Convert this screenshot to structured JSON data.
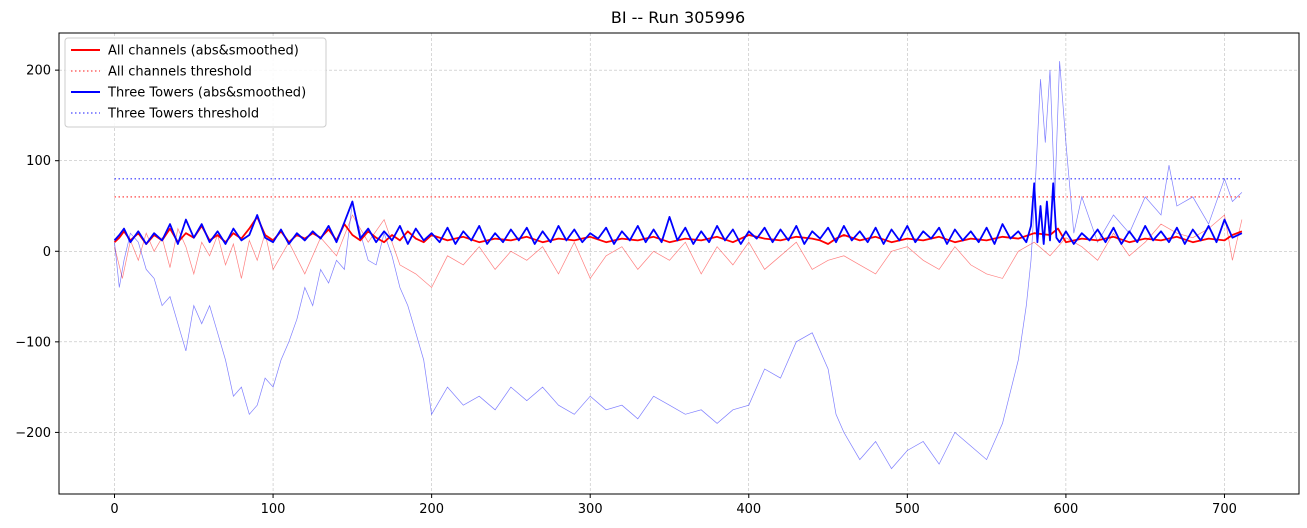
{
  "chart_data": {
    "type": "line",
    "title": "BI -- Run 305996",
    "xlabel": "",
    "ylabel": "",
    "xlim": [
      -35,
      747
    ],
    "ylim": [
      -268,
      241
    ],
    "x_ticks": [
      0,
      100,
      200,
      300,
      400,
      500,
      600,
      700
    ],
    "y_ticks": [
      -200,
      -100,
      0,
      100,
      200
    ],
    "x_tick_labels": [
      "0",
      "100",
      "200",
      "300",
      "400",
      "500",
      "600",
      "700"
    ],
    "y_tick_labels": [
      "−200",
      "−100",
      "0",
      "100",
      "200"
    ],
    "grid": true,
    "legend_position": "top-left",
    "legend": [
      {
        "label": "All channels (abs&smoothed)",
        "color": "#ff0000",
        "style": "solid"
      },
      {
        "label": "All channels threshold",
        "color": "#ff6666",
        "style": "dotted"
      },
      {
        "label": "Three Towers (abs&smoothed)",
        "color": "#0000ff",
        "style": "solid"
      },
      {
        "label": "Three Towers threshold",
        "color": "#6666ff",
        "style": "dotted"
      }
    ],
    "series": [
      {
        "name": "All channels threshold",
        "color": "#ff6666",
        "style": "dotted",
        "x": [
          0,
          711
        ],
        "values": [
          60,
          60
        ]
      },
      {
        "name": "Three Towers threshold",
        "color": "#6666ff",
        "style": "dotted",
        "x": [
          0,
          711
        ],
        "values": [
          80,
          80
        ]
      },
      {
        "name": "",
        "color": "#ff0000",
        "style": "raw",
        "alpha": 0.5,
        "x": [
          0,
          5,
          10,
          15,
          20,
          25,
          30,
          35,
          40,
          45,
          50,
          55,
          60,
          65,
          70,
          75,
          80,
          85,
          90,
          95,
          100,
          110,
          120,
          130,
          140,
          150,
          160,
          170,
          180,
          190,
          200,
          210,
          220,
          230,
          240,
          250,
          260,
          270,
          280,
          290,
          300,
          310,
          320,
          330,
          340,
          350,
          360,
          370,
          380,
          390,
          400,
          410,
          420,
          430,
          440,
          450,
          460,
          470,
          480,
          490,
          500,
          510,
          520,
          530,
          540,
          550,
          560,
          570,
          580,
          590,
          600,
          610,
          620,
          630,
          640,
          650,
          660,
          670,
          680,
          690,
          700,
          705,
          711
        ],
        "values": [
          5,
          -30,
          12,
          -10,
          20,
          0,
          15,
          -18,
          25,
          5,
          -25,
          10,
          -5,
          18,
          -15,
          8,
          -30,
          12,
          -10,
          20,
          -20,
          10,
          -25,
          15,
          -5,
          40,
          10,
          35,
          -15,
          -25,
          -40,
          -5,
          -15,
          5,
          -20,
          0,
          -10,
          5,
          -25,
          10,
          -30,
          -5,
          5,
          -20,
          0,
          -10,
          10,
          -25,
          5,
          -15,
          10,
          -20,
          -5,
          10,
          -20,
          -10,
          -5,
          -15,
          -25,
          0,
          5,
          -10,
          -20,
          5,
          -15,
          -25,
          -30,
          0,
          10,
          -5,
          15,
          5,
          -10,
          20,
          -5,
          10,
          30,
          20,
          15,
          25,
          40,
          -10,
          35
        ]
      },
      {
        "name": "",
        "color": "#0000ff",
        "style": "raw",
        "alpha": 0.5,
        "x": [
          0,
          3,
          6,
          10,
          15,
          20,
          25,
          30,
          35,
          40,
          45,
          50,
          55,
          60,
          65,
          70,
          75,
          80,
          85,
          90,
          95,
          100,
          105,
          110,
          115,
          120,
          125,
          130,
          135,
          140,
          145,
          150,
          155,
          160,
          165,
          170,
          175,
          180,
          185,
          190,
          195,
          200,
          210,
          220,
          230,
          240,
          250,
          260,
          270,
          280,
          290,
          300,
          310,
          320,
          330,
          340,
          350,
          360,
          370,
          380,
          390,
          400,
          410,
          420,
          430,
          440,
          450,
          455,
          460,
          470,
          480,
          490,
          500,
          510,
          520,
          530,
          540,
          550,
          560,
          570,
          575,
          578,
          580,
          584,
          587,
          590,
          593,
          596,
          600,
          605,
          610,
          620,
          630,
          640,
          650,
          660,
          665,
          670,
          680,
          690,
          700,
          705,
          711
        ],
        "values": [
          10,
          -40,
          -10,
          20,
          10,
          -20,
          -30,
          -60,
          -50,
          -80,
          -110,
          -60,
          -80,
          -60,
          -90,
          -120,
          -160,
          -150,
          -180,
          -170,
          -140,
          -150,
          -120,
          -100,
          -75,
          -40,
          -60,
          -20,
          -35,
          -10,
          -20,
          55,
          20,
          -10,
          -15,
          20,
          -5,
          -40,
          -60,
          -90,
          -120,
          -180,
          -150,
          -170,
          -160,
          -175,
          -150,
          -165,
          -150,
          -170,
          -180,
          -160,
          -175,
          -170,
          -185,
          -160,
          -170,
          -180,
          -175,
          -190,
          -175,
          -170,
          -130,
          -140,
          -100,
          -90,
          -130,
          -180,
          -200,
          -230,
          -210,
          -240,
          -220,
          -210,
          -235,
          -200,
          -215,
          -230,
          -190,
          -120,
          -60,
          -10,
          50,
          190,
          120,
          200,
          60,
          210,
          120,
          20,
          60,
          10,
          40,
          20,
          60,
          40,
          95,
          50,
          60,
          30,
          80,
          55,
          65
        ]
      },
      {
        "name": "All channels (abs&smoothed)",
        "color": "#ff0000",
        "style": "solid",
        "x": [
          0,
          3,
          6,
          10,
          15,
          20,
          25,
          30,
          35,
          40,
          45,
          50,
          55,
          60,
          65,
          70,
          75,
          80,
          85,
          90,
          95,
          100,
          105,
          110,
          115,
          120,
          125,
          130,
          135,
          140,
          145,
          150,
          155,
          160,
          165,
          170,
          175,
          180,
          185,
          190,
          195,
          200,
          210,
          220,
          230,
          240,
          250,
          260,
          270,
          280,
          290,
          300,
          310,
          320,
          330,
          340,
          350,
          360,
          370,
          380,
          390,
          400,
          410,
          420,
          430,
          440,
          445,
          450,
          455,
          460,
          470,
          480,
          490,
          500,
          510,
          520,
          530,
          540,
          550,
          560,
          570,
          580,
          590,
          595,
          600,
          610,
          620,
          630,
          640,
          650,
          660,
          670,
          680,
          690,
          700,
          705,
          711
        ],
        "values": [
          10,
          15,
          22,
          12,
          20,
          8,
          18,
          12,
          25,
          10,
          20,
          15,
          28,
          12,
          18,
          10,
          20,
          14,
          25,
          38,
          18,
          12,
          22,
          10,
          18,
          14,
          20,
          15,
          24,
          12,
          30,
          18,
          12,
          22,
          15,
          10,
          18,
          12,
          22,
          14,
          10,
          18,
          12,
          16,
          10,
          14,
          12,
          16,
          10,
          14,
          12,
          16,
          10,
          14,
          12,
          16,
          10,
          14,
          12,
          16,
          10,
          18,
          14,
          12,
          16,
          14,
          12,
          8,
          14,
          18,
          12,
          16,
          10,
          14,
          12,
          16,
          10,
          14,
          12,
          16,
          14,
          20,
          18,
          25,
          10,
          14,
          12,
          16,
          10,
          14,
          12,
          16,
          10,
          14,
          12,
          18,
          22
        ]
      },
      {
        "name": "Three Towers (abs&smoothed)",
        "color": "#0000ff",
        "style": "solid",
        "x": [
          0,
          3,
          6,
          10,
          15,
          20,
          25,
          30,
          35,
          40,
          45,
          50,
          55,
          60,
          65,
          70,
          75,
          80,
          85,
          90,
          95,
          100,
          105,
          110,
          115,
          120,
          125,
          130,
          135,
          140,
          145,
          150,
          155,
          160,
          165,
          170,
          175,
          180,
          185,
          190,
          195,
          200,
          205,
          210,
          215,
          220,
          225,
          230,
          235,
          240,
          245,
          250,
          255,
          260,
          265,
          270,
          275,
          280,
          285,
          290,
          295,
          300,
          305,
          310,
          315,
          320,
          325,
          330,
          335,
          340,
          345,
          350,
          355,
          360,
          365,
          370,
          375,
          380,
          385,
          390,
          395,
          400,
          405,
          410,
          415,
          420,
          425,
          430,
          435,
          440,
          445,
          450,
          455,
          460,
          465,
          470,
          475,
          480,
          485,
          490,
          495,
          500,
          505,
          510,
          515,
          520,
          525,
          530,
          535,
          540,
          545,
          550,
          555,
          560,
          565,
          570,
          575,
          578,
          580,
          582,
          584,
          586,
          588,
          590,
          592,
          594,
          596,
          600,
          605,
          610,
          615,
          620,
          625,
          630,
          635,
          640,
          645,
          650,
          655,
          660,
          665,
          670,
          675,
          680,
          685,
          690,
          695,
          700,
          705,
          711
        ],
        "values": [
          12,
          18,
          25,
          10,
          22,
          8,
          20,
          12,
          30,
          8,
          35,
          15,
          30,
          10,
          22,
          8,
          25,
          12,
          18,
          40,
          15,
          10,
          24,
          8,
          20,
          12,
          22,
          14,
          28,
          10,
          32,
          55,
          14,
          25,
          10,
          22,
          12,
          28,
          8,
          25,
          12,
          20,
          10,
          26,
          8,
          22,
          12,
          28,
          8,
          20,
          10,
          24,
          12,
          26,
          8,
          22,
          10,
          28,
          12,
          24,
          10,
          20,
          14,
          26,
          8,
          22,
          12,
          28,
          10,
          24,
          10,
          38,
          12,
          26,
          8,
          22,
          10,
          28,
          12,
          24,
          8,
          22,
          14,
          26,
          10,
          24,
          12,
          28,
          8,
          22,
          14,
          26,
          10,
          28,
          12,
          22,
          10,
          26,
          8,
          24,
          12,
          28,
          10,
          22,
          14,
          26,
          8,
          24,
          12,
          22,
          10,
          26,
          8,
          30,
          14,
          22,
          10,
          28,
          75,
          10,
          50,
          8,
          55,
          12,
          75,
          15,
          10,
          22,
          8,
          20,
          12,
          24,
          10,
          26,
          8,
          22,
          10,
          28,
          12,
          22,
          10,
          26,
          8,
          24,
          12,
          28,
          10,
          35,
          15,
          20
        ]
      }
    ]
  }
}
